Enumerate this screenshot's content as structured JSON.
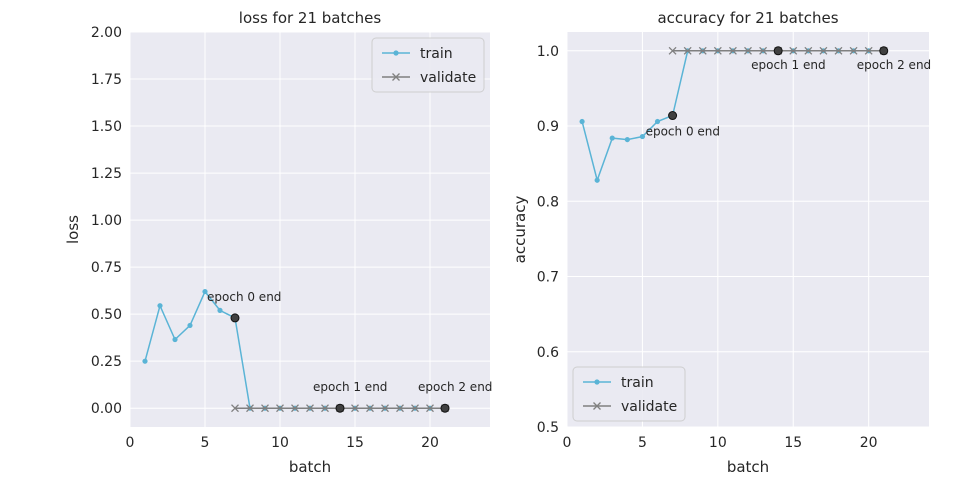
{
  "chart_data": [
    {
      "type": "line",
      "title": "loss for 21 batches",
      "xlabel": "batch",
      "ylabel": "loss",
      "xlim": [
        0,
        24
      ],
      "ylim": [
        -0.1,
        2.0
      ],
      "xticks": [
        0,
        5,
        10,
        15,
        20
      ],
      "yticks": [
        0.0,
        0.25,
        0.5,
        0.75,
        1.0,
        1.25,
        1.5,
        1.75,
        2.0
      ],
      "ytick_labels": [
        "0.00",
        "0.25",
        "0.50",
        "0.75",
        "1.00",
        "1.25",
        "1.50",
        "1.75",
        "2.00"
      ],
      "grid": true,
      "legend_position": "top-right",
      "series": [
        {
          "name": "train",
          "color": "#5ab4d6",
          "marker": "dot",
          "x": [
            1,
            2,
            3,
            4,
            5,
            6,
            7,
            8,
            9,
            10,
            11,
            12,
            13,
            14,
            15,
            16,
            17,
            18,
            19,
            20,
            21
          ],
          "y": [
            0.25,
            0.545,
            0.365,
            0.44,
            0.62,
            0.52,
            0.48,
            0,
            0,
            0,
            0,
            0,
            0,
            0,
            0,
            0,
            0,
            0,
            0,
            0,
            0
          ]
        },
        {
          "name": "validate",
          "color": "#808080",
          "marker": "x",
          "x": [
            7,
            8,
            9,
            10,
            11,
            12,
            13,
            14,
            15,
            16,
            17,
            18,
            19,
            20,
            21
          ],
          "y": [
            0,
            0,
            0,
            0,
            0,
            0,
            0,
            0,
            0,
            0,
            0,
            0,
            0,
            0,
            0
          ]
        }
      ],
      "annotations": [
        {
          "text": "epoch 0 end",
          "x": 7,
          "y": 0.48
        },
        {
          "text": "epoch 1 end",
          "x": 14,
          "y": 0.0
        },
        {
          "text": "epoch 2 end",
          "x": 21,
          "y": 0.0
        }
      ]
    },
    {
      "type": "line",
      "title": "accuracy for 21 batches",
      "xlabel": "batch",
      "ylabel": "accuracy",
      "xlim": [
        0,
        24
      ],
      "ylim": [
        0.5,
        1.025
      ],
      "xticks": [
        0,
        5,
        10,
        15,
        20
      ],
      "yticks": [
        0.5,
        0.6,
        0.7,
        0.8,
        0.9,
        1.0
      ],
      "ytick_labels": [
        "0.5",
        "0.6",
        "0.7",
        "0.8",
        "0.9",
        "1.0"
      ],
      "grid": true,
      "legend_position": "bottom-left",
      "series": [
        {
          "name": "train",
          "color": "#5ab4d6",
          "marker": "dot",
          "x": [
            1,
            2,
            3,
            4,
            5,
            6,
            7,
            8,
            9,
            10,
            11,
            12,
            13,
            14,
            15,
            16,
            17,
            18,
            19,
            20,
            21
          ],
          "y": [
            0.906,
            0.828,
            0.884,
            0.882,
            0.886,
            0.906,
            0.914,
            1,
            1,
            1,
            1,
            1,
            1,
            1,
            1,
            1,
            1,
            1,
            1,
            1,
            1
          ]
        },
        {
          "name": "validate",
          "color": "#808080",
          "marker": "x",
          "x": [
            7,
            8,
            9,
            10,
            11,
            12,
            13,
            14,
            15,
            16,
            17,
            18,
            19,
            20,
            21
          ],
          "y": [
            1,
            1,
            1,
            1,
            1,
            1,
            1,
            1,
            1,
            1,
            1,
            1,
            1,
            1,
            1
          ]
        }
      ],
      "annotations": [
        {
          "text": "epoch 0 end",
          "x": 7,
          "y": 0.914
        },
        {
          "text": "epoch 1 end",
          "x": 14,
          "y": 1.0
        },
        {
          "text": "epoch 2 end",
          "x": 21,
          "y": 1.0
        }
      ]
    }
  ]
}
